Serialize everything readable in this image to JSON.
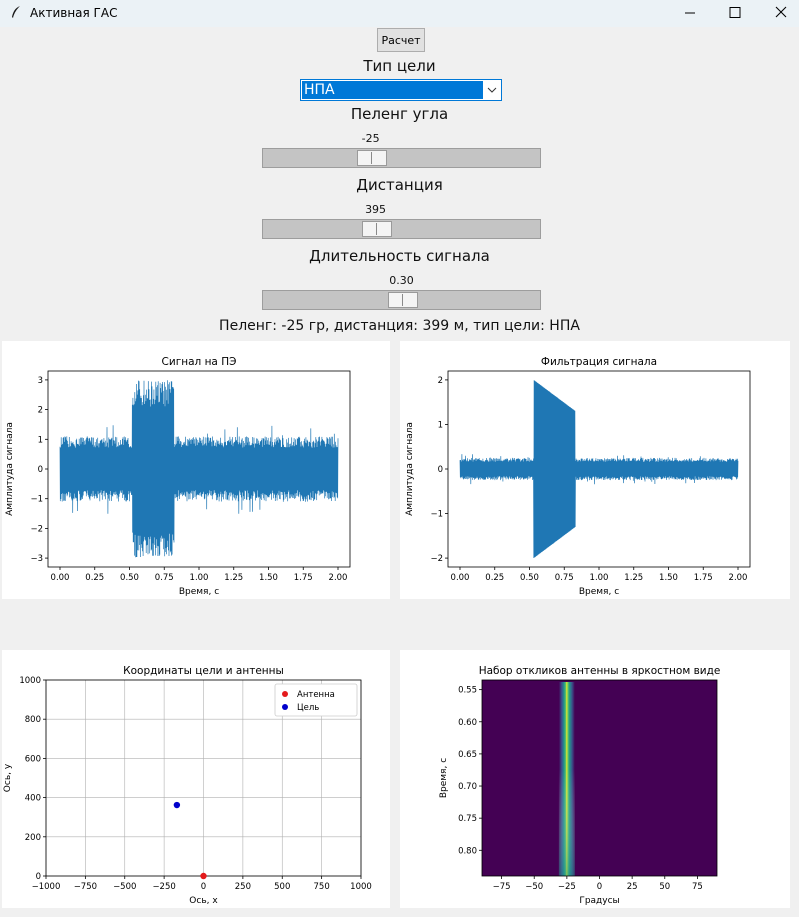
{
  "window": {
    "title": "Активная ГАС",
    "minimize_icon": "minimize-icon",
    "maximize_icon": "maximize-icon",
    "close_icon": "close-icon"
  },
  "controls": {
    "calc_button": "Расчет",
    "target_type_label": "Тип цели",
    "target_type_value": "НПА",
    "bearing_label": "Пеленг угла",
    "bearing_value": "-25",
    "bearing_fraction": 0.375,
    "distance_label": "Дистанция",
    "distance_value": "395",
    "distance_fraction": 0.395,
    "duration_label": "Длительность сигнала",
    "duration_value": "0.30",
    "duration_fraction": 0.5
  },
  "result_text": "Пеленг: -25 гр, дистанция: 399 м, тип цели: НПА",
  "colors": {
    "accent": "#0078d7",
    "signal": "#1f77b4",
    "antenna": "#e41a1c",
    "target": "#0000cc"
  },
  "chart_data": [
    {
      "type": "line",
      "title": "Сигнал на ПЭ",
      "xlabel": "Время, с",
      "ylabel": "Амплитуда сигнала",
      "xlim": [
        0,
        2
      ],
      "ylim": [
        -3.3,
        3.3
      ],
      "xticks": [
        "0.00",
        "0.25",
        "0.50",
        "0.75",
        "1.00",
        "1.25",
        "1.50",
        "1.75",
        "2.00"
      ],
      "yticks": [
        "−3",
        "−2",
        "−1",
        "0",
        "1",
        "2",
        "3"
      ],
      "envelope": {
        "noise_amplitude": 1.1,
        "pulse_start": 0.52,
        "pulse_end": 0.82,
        "pulse_amplitude": 3.0
      }
    },
    {
      "type": "line",
      "title": "Фильтрация сигнала",
      "xlabel": "Время, с",
      "ylabel": "Амплитуда сигнала",
      "xlim": [
        0,
        2
      ],
      "ylim": [
        -2.2,
        2.2
      ],
      "xticks": [
        "0.00",
        "0.25",
        "0.50",
        "0.75",
        "1.00",
        "1.25",
        "1.50",
        "1.75",
        "2.00"
      ],
      "yticks": [
        "−2",
        "−1",
        "0",
        "1",
        "2"
      ],
      "envelope": {
        "noise_amplitude": 0.25,
        "pulse_start": 0.53,
        "pulse_end": 0.83,
        "pulse_amplitude": 2.0
      }
    },
    {
      "type": "scatter",
      "title": "Координаты цели и антенны",
      "xlabel": "Ось, x",
      "ylabel": "Ось, y",
      "xlim": [
        -1000,
        1000
      ],
      "ylim": [
        0,
        1000
      ],
      "xticks": [
        "−1000",
        "−750",
        "−500",
        "−250",
        "0",
        "250",
        "500",
        "750",
        "1000"
      ],
      "yticks": [
        "0",
        "200",
        "400",
        "600",
        "800",
        "1000"
      ],
      "grid": true,
      "legend": "top-right",
      "series": [
        {
          "name": "Антенна",
          "x": [
            0
          ],
          "y": [
            0
          ]
        },
        {
          "name": "Цель",
          "x": [
            -169
          ],
          "y": [
            362
          ]
        }
      ]
    },
    {
      "type": "heatmap",
      "title": "Набор откликов антенны в яркостном виде",
      "xlabel": "Градусы",
      "ylabel": "Время, с",
      "xlim": [
        -90,
        90
      ],
      "ylim": [
        0.84,
        0.535
      ],
      "xticks": [
        "−75",
        "−50",
        "−25",
        "0",
        "25",
        "50",
        "75"
      ],
      "yticks": [
        "0.55",
        "0.60",
        "0.65",
        "0.70",
        "0.75",
        "0.80"
      ],
      "peak_angle": -25,
      "colormap": "viridis"
    }
  ]
}
